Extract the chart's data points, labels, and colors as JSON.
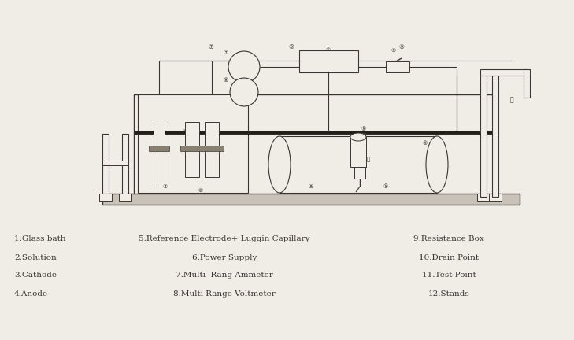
{
  "bg_color": "#f0ede6",
  "line_color": "#3a3530",
  "legend_items": [
    [
      "1.Glass bath",
      "5.Reference Electrode+ Luggin Capillary",
      "9.Resistance Box"
    ],
    [
      "2.Solution",
      "6.Power Supply",
      "10.Drain Point"
    ],
    [
      "3.Cathode",
      "7.Multi  Rang Ammeter",
      "11.Test Point"
    ],
    [
      "4.Anode",
      "8.Multi Range Voltmeter",
      "12.Stands"
    ]
  ],
  "font_size": 7.5
}
